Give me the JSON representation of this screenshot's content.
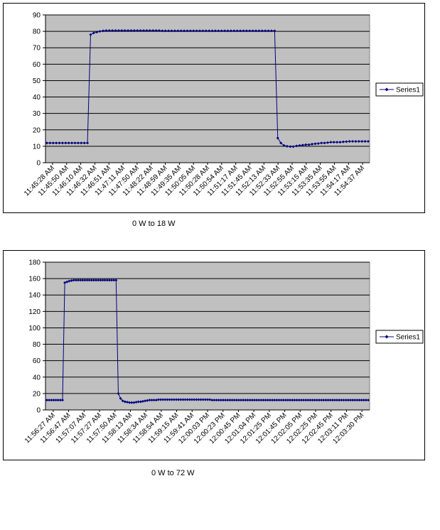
{
  "chart_data": [
    {
      "type": "line",
      "title": "",
      "xlabel": "",
      "ylabel": "",
      "caption": "0 W to 18 W",
      "ylim": [
        0,
        90
      ],
      "yticks": [
        0,
        10,
        20,
        30,
        40,
        50,
        60,
        70,
        80,
        90
      ],
      "grid": true,
      "legend_position": "right",
      "tick_labels": [
        "11:45:28 AM",
        "11:45:50 AM",
        "11:46:10 AM",
        "11:46:32 AM",
        "11:46:51 AM",
        "11:47:11 AM",
        "11:47:50 AM",
        "11:48:22 AM",
        "11:48:59 AM",
        "11:49:35 AM",
        "11:50:05 AM",
        "11:50:28 AM",
        "11:50:54 AM",
        "11:51:17 AM",
        "11:51:45 AM",
        "11:52:13 AM",
        "11:52:33 AM",
        "11:52:55 AM",
        "11:53:15 AM",
        "11:53:35 AM",
        "11:53:55 AM",
        "11:54:17 AM",
        "11:54:37 AM"
      ],
      "colors": {
        "plot_bg": "#C0C0C0",
        "series": "#000080"
      },
      "series": [
        {
          "name": "Series1",
          "values": [
            12,
            12,
            12,
            12,
            12,
            12,
            12,
            12,
            12,
            12,
            12,
            12,
            12,
            12,
            78,
            79,
            79.5,
            80,
            80.3,
            80.5,
            80.5,
            80.5,
            80.5,
            80.5,
            80.5,
            80.5,
            80.5,
            80.5,
            80.5,
            80.5,
            80.5,
            80.5,
            80.5,
            80.5,
            80.5,
            80.5,
            80.5,
            80.3,
            80.3,
            80.3,
            80.3,
            80.3,
            80.3,
            80.3,
            80.3,
            80.3,
            80.3,
            80.3,
            80.3,
            80.3,
            80.3,
            80.3,
            80.3,
            80.3,
            80.3,
            80.3,
            80.3,
            80.3,
            80.3,
            80.3,
            80.3,
            80.3,
            80.3,
            80.3,
            80.3,
            80.3,
            80.3,
            80.3,
            80.3,
            80.3,
            80.3,
            80.3,
            80.3,
            80.3,
            15,
            12,
            10.5,
            10,
            9.8,
            9.8,
            10.2,
            10.5,
            10.7,
            11,
            11,
            11.3,
            11.5,
            11.7,
            12,
            12,
            12.2,
            12.5,
            12.5,
            12.5,
            12.5,
            12.7,
            12.8,
            13,
            13,
            13,
            13,
            13,
            13,
            13
          ]
        }
      ]
    },
    {
      "type": "line",
      "title": "",
      "xlabel": "",
      "ylabel": "",
      "caption": "0 W to 72 W",
      "ylim": [
        0,
        180
      ],
      "yticks": [
        0,
        20,
        40,
        60,
        80,
        100,
        120,
        140,
        160,
        180
      ],
      "grid": true,
      "legend_position": "right",
      "tick_labels": [
        "11:56:27 AM",
        "11:56:47 AM",
        "11:57:07 AM",
        "11:57:27 AM",
        "11:57:50 AM",
        "11:58:13 AM",
        "11:58:34 AM",
        "11:58:54 AM",
        "11:59:15 AM",
        "11:59:41 AM",
        "12:00:03 PM",
        "12:00:23 PM",
        "12:00:45 PM",
        "12:01:04 PM",
        "12:01:25 PM",
        "12:01:45 PM",
        "12:02:05 PM",
        "12:02:25 PM",
        "12:02:45 PM",
        "12:03:11 PM",
        "12:03:30 PM"
      ],
      "colors": {
        "plot_bg": "#C0C0C0",
        "series": "#000080"
      },
      "series": [
        {
          "name": "Series1",
          "values": [
            12,
            12,
            12,
            12,
            12,
            12,
            12,
            12,
            155,
            156,
            157,
            157.5,
            158,
            158,
            158,
            158,
            158,
            158,
            158,
            158,
            158,
            158,
            158,
            158,
            158,
            158,
            158,
            158,
            158,
            158,
            158,
            158,
            20,
            14,
            11,
            10,
            9.5,
            9,
            9,
            9,
            9.5,
            10,
            10,
            10.5,
            11,
            11.5,
            12,
            12,
            12,
            12,
            12.5,
            12.5,
            12.5,
            12.5,
            12.5,
            12.5,
            12.5,
            12.5,
            12.5,
            12.5,
            12.5,
            12.5,
            12.5,
            12.5,
            12.5,
            12.5,
            12.5,
            12.5,
            12.5,
            12.5,
            12.5,
            12.5,
            12.5,
            12.5,
            12,
            12,
            12,
            12,
            12,
            12,
            12,
            12,
            12,
            12,
            12,
            12,
            12,
            12,
            12,
            12,
            12,
            12,
            12,
            12,
            12,
            12,
            12,
            12,
            12,
            12,
            12,
            12,
            12,
            12,
            12,
            12,
            12,
            12,
            12,
            12,
            12,
            12,
            12,
            12,
            12,
            12,
            12,
            12,
            12,
            12,
            12,
            12,
            12,
            12,
            12,
            12,
            12,
            12,
            12,
            12,
            12,
            12,
            12,
            12,
            12,
            12,
            12,
            12,
            12,
            12,
            12,
            12,
            12,
            12,
            12
          ]
        }
      ]
    }
  ]
}
